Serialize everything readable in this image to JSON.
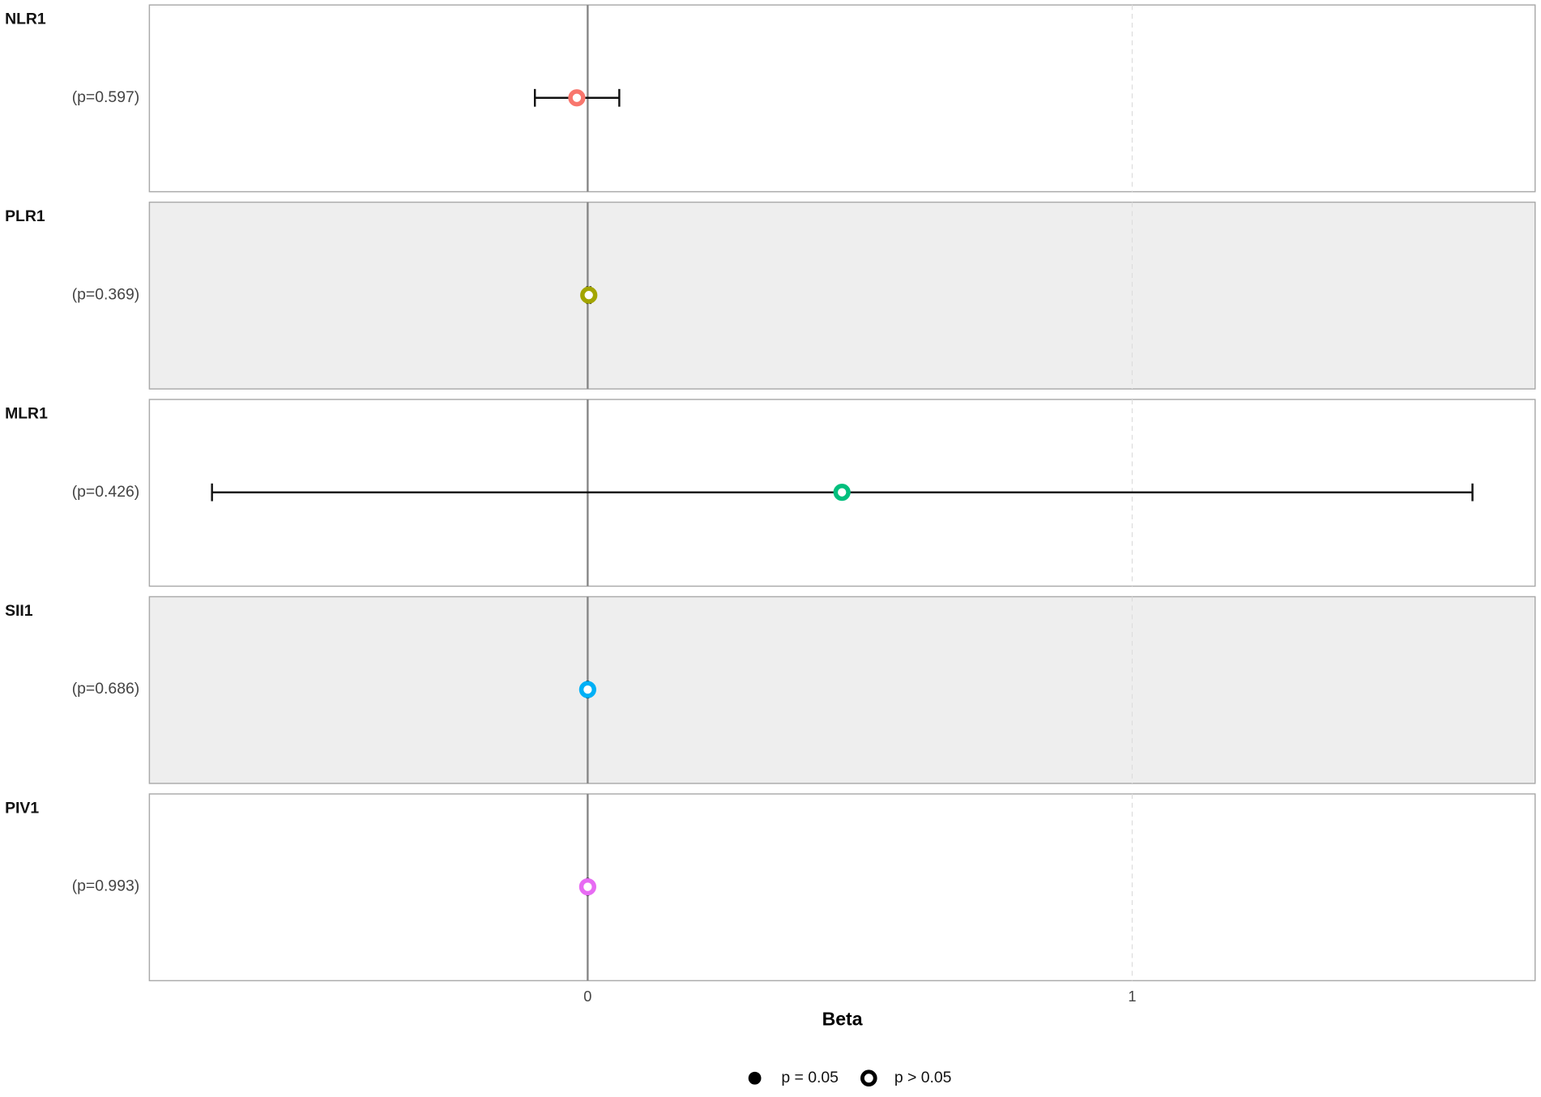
{
  "chart_data": {
    "type": "forest",
    "x_label": "Beta",
    "categories": [
      "NLR1",
      "PLR1",
      "MLR1",
      "SII1",
      "PIV1"
    ],
    "p_labels": [
      "(p=0.597)",
      "(p=0.369)",
      "(p=0.426)",
      "(p=0.686)",
      "(p=0.993)"
    ],
    "values": [
      -0.02,
      0.002,
      0.467,
      0.0,
      0.0
    ],
    "lower": [
      -0.097,
      -0.001,
      -0.69,
      -0.001,
      -0.001
    ],
    "upper": [
      0.058,
      0.005,
      1.625,
      0.001,
      0.001
    ],
    "colors": [
      "#F8766D",
      "#A3A500",
      "#00BF7D",
      "#00B0F6",
      "#E76BF3"
    ],
    "xlim": [
      -0.805,
      1.74
    ],
    "xticks": [
      0,
      1
    ],
    "grid": true,
    "legend": {
      "position": "bottom",
      "entries": [
        "p = 0.05",
        "p > 0.05"
      ]
    }
  }
}
